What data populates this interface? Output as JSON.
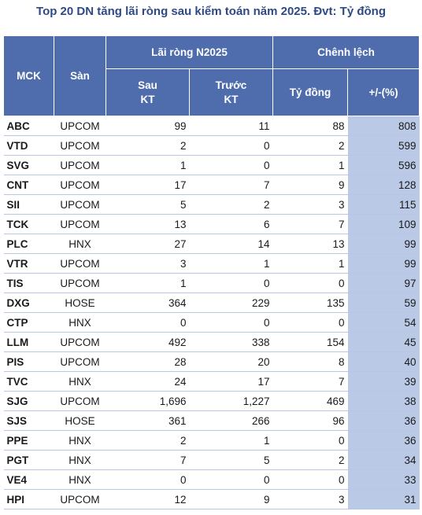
{
  "title": "Top 20 DN tăng lãi ròng sau kiểm toán năm 2025. Đvt: Tỷ đồng",
  "header": {
    "mck": "MCK",
    "san": "Sàn",
    "lai_rong": "Lãi ròng N2025",
    "chenh_lech": "Chênh lệch",
    "sau_line1": "Sau",
    "sau_line2": "KT",
    "truoc_line1": "Trước",
    "truoc_line2": "KT",
    "ty_dong": "Tỷ đồng",
    "pct": "+/-(%)"
  },
  "colors": {
    "header_bg": "#4f6dad",
    "pct_bg": "#b9c9e6",
    "title": "#2e4a86"
  },
  "rows": [
    {
      "mck": "ABC",
      "san": "UPCOM",
      "sau": "99",
      "truoc": "11",
      "ty": "88",
      "pct": "808"
    },
    {
      "mck": "VTD",
      "san": "UPCOM",
      "sau": "2",
      "truoc": "0",
      "ty": "2",
      "pct": "599"
    },
    {
      "mck": "SVG",
      "san": "UPCOM",
      "sau": "1",
      "truoc": "0",
      "ty": "1",
      "pct": "596"
    },
    {
      "mck": "CNT",
      "san": "UPCOM",
      "sau": "17",
      "truoc": "7",
      "ty": "9",
      "pct": "128"
    },
    {
      "mck": "SII",
      "san": "UPCOM",
      "sau": "5",
      "truoc": "2",
      "ty": "3",
      "pct": "115"
    },
    {
      "mck": "TCK",
      "san": "UPCOM",
      "sau": "13",
      "truoc": "6",
      "ty": "7",
      "pct": "109"
    },
    {
      "mck": "PLC",
      "san": "HNX",
      "sau": "27",
      "truoc": "14",
      "ty": "13",
      "pct": "99"
    },
    {
      "mck": "VTR",
      "san": "UPCOM",
      "sau": "3",
      "truoc": "1",
      "ty": "1",
      "pct": "99"
    },
    {
      "mck": "TIS",
      "san": "UPCOM",
      "sau": "1",
      "truoc": "0",
      "ty": "0",
      "pct": "97"
    },
    {
      "mck": "DXG",
      "san": "HOSE",
      "sau": "364",
      "truoc": "229",
      "ty": "135",
      "pct": "59"
    },
    {
      "mck": "CTP",
      "san": "HNX",
      "sau": "0",
      "truoc": "0",
      "ty": "0",
      "pct": "54"
    },
    {
      "mck": "LLM",
      "san": "UPCOM",
      "sau": "492",
      "truoc": "338",
      "ty": "154",
      "pct": "45"
    },
    {
      "mck": "PIS",
      "san": "UPCOM",
      "sau": "28",
      "truoc": "20",
      "ty": "8",
      "pct": "40"
    },
    {
      "mck": "TVC",
      "san": "HNX",
      "sau": "24",
      "truoc": "17",
      "ty": "7",
      "pct": "39"
    },
    {
      "mck": "SJG",
      "san": "UPCOM",
      "sau": "1,696",
      "truoc": "1,227",
      "ty": "469",
      "pct": "38"
    },
    {
      "mck": "SJS",
      "san": "HOSE",
      "sau": "361",
      "truoc": "266",
      "ty": "96",
      "pct": "36"
    },
    {
      "mck": "PPE",
      "san": "HNX",
      "sau": "2",
      "truoc": "1",
      "ty": "0",
      "pct": "36"
    },
    {
      "mck": "PGT",
      "san": "HNX",
      "sau": "7",
      "truoc": "5",
      "ty": "2",
      "pct": "34"
    },
    {
      "mck": "VE4",
      "san": "HNX",
      "sau": "0",
      "truoc": "0",
      "ty": "0",
      "pct": "33"
    },
    {
      "mck": "HPI",
      "san": "UPCOM",
      "sau": "12",
      "truoc": "9",
      "ty": "3",
      "pct": "31"
    }
  ]
}
